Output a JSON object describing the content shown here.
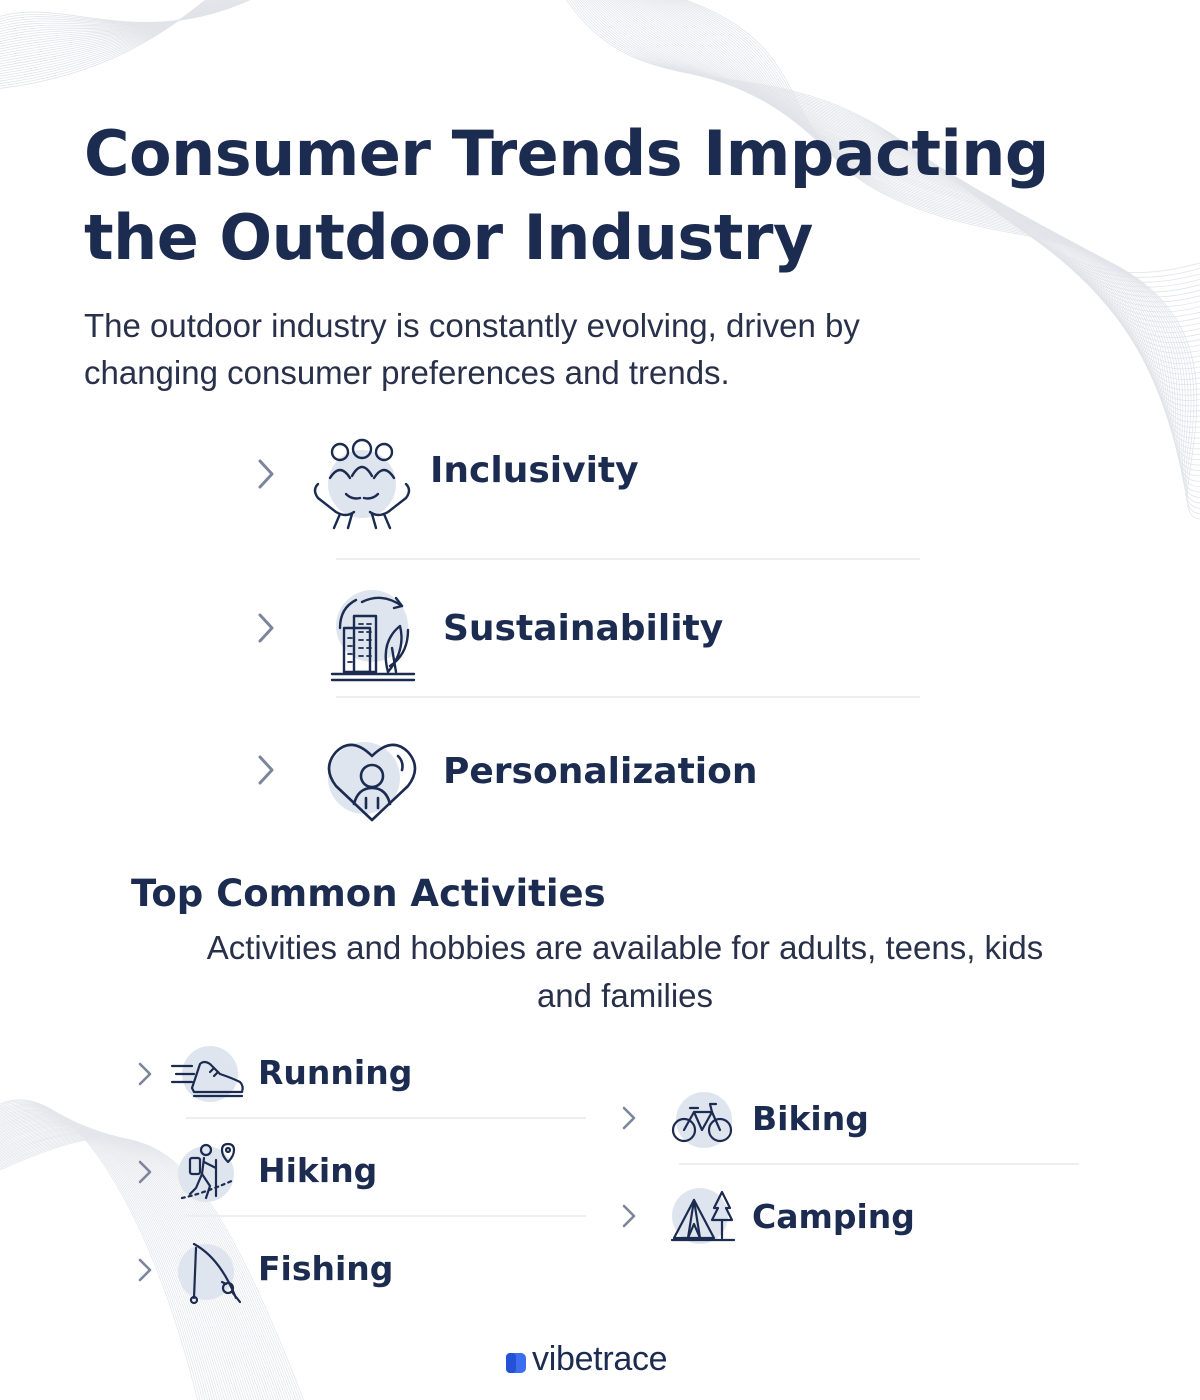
{
  "header": {
    "title_line1": "Consumer Trends Impacting",
    "title_line2": "the Outdoor Industry",
    "subtitle_line1": "The outdoor industry is constantly evolving, driven by",
    "subtitle_line2": "changing consumer preferences and trends."
  },
  "trends": [
    {
      "label": "Inclusivity",
      "icon": "hands-people-icon"
    },
    {
      "label": "Sustainability",
      "icon": "city-recycle-icon"
    },
    {
      "label": "Personalization",
      "icon": "heart-person-icon"
    }
  ],
  "activities": {
    "title": "Top Common Activities",
    "subtitle_line1": "Activities and hobbies are available for adults, teens, kids",
    "subtitle_line2": "and families",
    "items": [
      {
        "label": "Running",
        "icon": "running-shoe-icon"
      },
      {
        "label": "Hiking",
        "icon": "hiker-icon"
      },
      {
        "label": "Fishing",
        "icon": "fishing-rod-icon"
      },
      {
        "label": "Biking",
        "icon": "bicycle-icon"
      },
      {
        "label": "Camping",
        "icon": "tent-icon"
      }
    ]
  },
  "footer": {
    "logo_text": "vibetrace"
  },
  "colors": {
    "navy": "#1c2b50",
    "chevron": "#7c859b",
    "icon_blob": "#dfe5ee",
    "logo_accent": "#3d6ef2"
  }
}
